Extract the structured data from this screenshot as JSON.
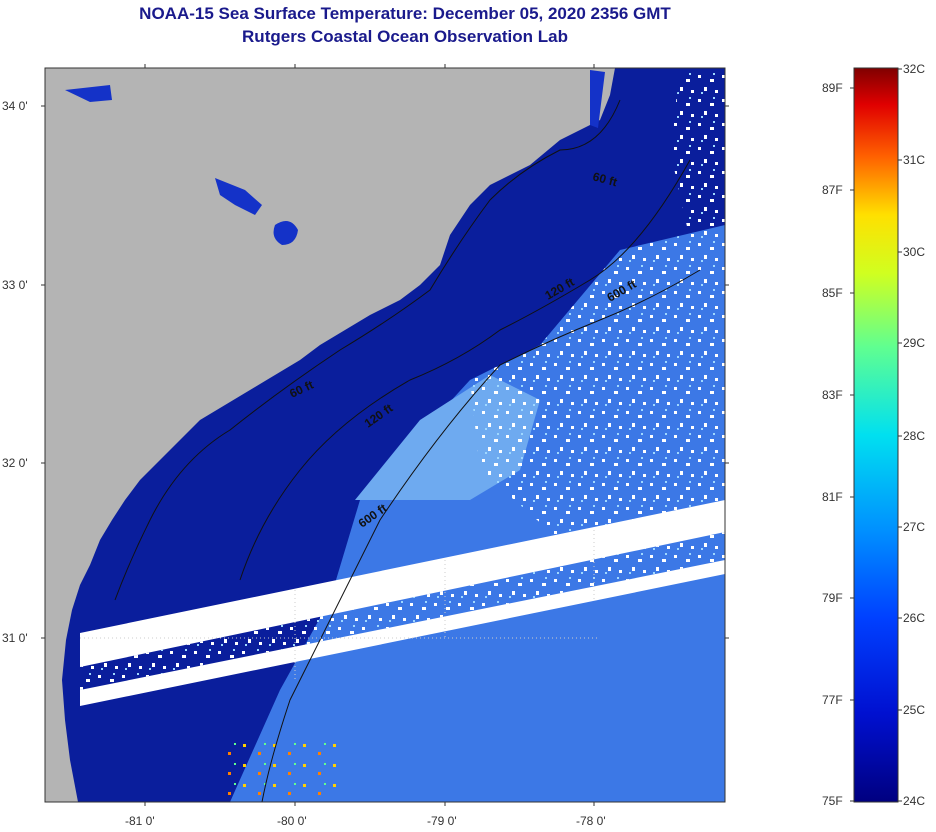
{
  "header": {
    "title": "NOAA-15 Sea Surface Temperature:  December 05, 2020 2356 GMT",
    "subtitle": "Rutgers Coastal Ocean Observation Lab"
  },
  "map": {
    "lon_labels": [
      "-81 0'",
      "-80 0'",
      "-79 0'",
      "-78 0'"
    ],
    "lat_labels": [
      "34 0'",
      "33 0'",
      "32 0'",
      "31 0'"
    ],
    "contour_labels": [
      "60 ft",
      "60 ft",
      "120 ft",
      "120 ft",
      "600 ft",
      "600 ft"
    ]
  },
  "colorbar": {
    "celsius_labels": [
      "32C",
      "31C",
      "30C",
      "29C",
      "28C",
      "27C",
      "26C",
      "25C",
      "24C"
    ],
    "fahrenheit_labels": [
      "89F",
      "87F",
      "85F",
      "83F",
      "81F",
      "79F",
      "77F",
      "75F"
    ]
  },
  "colors": {
    "land": "#b4b4b4",
    "deep_water": "#0a1e9c",
    "shelf_water": "#1432c8",
    "offshore": "#3c78e6",
    "gulfstream": "#6eaaf0",
    "cloud": "#ffffff",
    "title": "#1a1a8c"
  }
}
